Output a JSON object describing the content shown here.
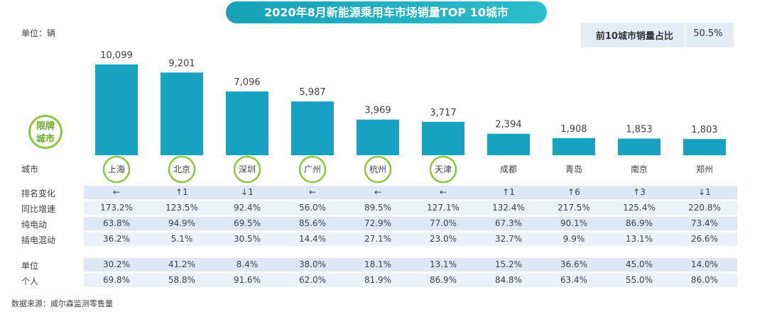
{
  "title": "2020年8月新能源乘用车市场销量TOP 10城市",
  "unit": "单位：辆",
  "share": {
    "label": "前10城市销量占比",
    "value": "50.5%"
  },
  "limit_badge": [
    "限牌",
    "城市"
  ],
  "colors": {
    "bar": "#17a2c2",
    "title": "#1aaec0",
    "band": "#dce8f5",
    "limit_ring": "#8dc63f"
  },
  "chart_data": {
    "type": "bar",
    "title": "2020年8月新能源乘用车市场销量TOP 10城市",
    "categories": [
      "上海",
      "北京",
      "深圳",
      "广州",
      "杭州",
      "天津",
      "成都",
      "青岛",
      "南京",
      "郑州"
    ],
    "values": [
      10099,
      9201,
      7096,
      5987,
      3969,
      3717,
      2394,
      1908,
      1853,
      1803
    ],
    "value_labels": [
      "10,099",
      "9,201",
      "7,096",
      "5,987",
      "3,969",
      "3,717",
      "2,394",
      "1,908",
      "1,853",
      "1,803"
    ],
    "ylim": [
      0,
      10099
    ],
    "limited_cities": [
      true,
      true,
      true,
      true,
      true,
      true,
      false,
      false,
      false,
      false
    ]
  },
  "table": {
    "rows": [
      {
        "label": "城市",
        "values": [
          "上海",
          "北京",
          "深圳",
          "广州",
          "杭州",
          "天津",
          "成都",
          "青岛",
          "南京",
          "郑州"
        ]
      },
      {
        "label": "排名变化",
        "values": [
          "←",
          "↑1",
          "↓1",
          "←",
          "←",
          "←",
          "↑1",
          "↑6",
          "↑3",
          "↓1"
        ]
      },
      {
        "label": "同比增速",
        "values": [
          "173.2%",
          "123.5%",
          "92.4%",
          "56.0%",
          "89.5%",
          "127.1%",
          "132.4%",
          "217.5%",
          "125.4%",
          "220.8%"
        ]
      },
      {
        "label": "纯电动",
        "values": [
          "63.8%",
          "94.9%",
          "69.5%",
          "85.6%",
          "72.9%",
          "77.0%",
          "67.3%",
          "90.1%",
          "86.9%",
          "73.4%"
        ]
      },
      {
        "label": "插电混动",
        "values": [
          "36.2%",
          "5.1%",
          "30.5%",
          "14.4%",
          "27.1%",
          "23.0%",
          "32.7%",
          "9.9%",
          "13.1%",
          "26.6%"
        ]
      },
      {
        "label": "单位",
        "values": [
          "30.2%",
          "41.2%",
          "8.4%",
          "38.0%",
          "18.1%",
          "13.1%",
          "15.2%",
          "36.6%",
          "45.0%",
          "14.0%"
        ]
      },
      {
        "label": "个人",
        "values": [
          "69.8%",
          "58.8%",
          "91.6%",
          "62.0%",
          "81.9%",
          "86.9%",
          "84.8%",
          "63.4%",
          "55.0%",
          "86.0%"
        ]
      }
    ]
  },
  "source": "数据来源：威尔森监测零售量"
}
